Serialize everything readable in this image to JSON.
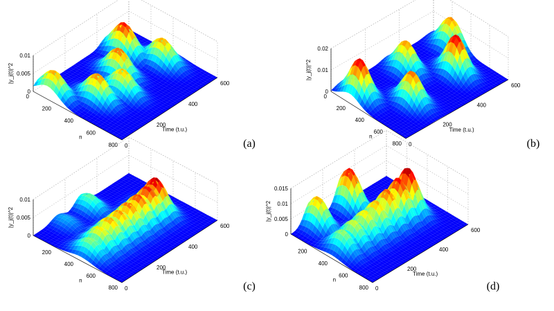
{
  "chart_data": [
    {
      "type": "surface",
      "panel_label": "(a)",
      "zlabel": "|y_j(t)|^2",
      "xlabel": "Time (t.u.)",
      "ylabel": "n",
      "x_ticks": [
        "0",
        "200",
        "400",
        "600"
      ],
      "y_ticks": [
        "0",
        "200",
        "400",
        "600",
        "800"
      ],
      "z_ticks": [
        "0",
        "0.005",
        "0.01"
      ],
      "xlim": [
        0,
        600
      ],
      "ylim": [
        0,
        800
      ],
      "zlim": [
        0,
        0.01
      ],
      "colormap": "jet",
      "peaks": [
        {
          "time": 40,
          "n": 130,
          "value": 0.0068
        },
        {
          "time": 140,
          "n": 380,
          "value": 0.0072
        },
        {
          "time": 250,
          "n": 450,
          "value": 0.0065
        },
        {
          "time": 330,
          "n": 300,
          "value": 0.0075
        },
        {
          "time": 460,
          "n": 160,
          "value": 0.0085
        },
        {
          "time": 520,
          "n": 420,
          "value": 0.0068
        }
      ]
    },
    {
      "type": "surface",
      "panel_label": "(b)",
      "zlabel": "|y_j(t)|^2",
      "xlabel": "Time (t.u.)",
      "ylabel": "n",
      "x_ticks": [
        "0",
        "200",
        "400",
        "600"
      ],
      "y_ticks": [
        "0",
        "200",
        "400",
        "600",
        "800"
      ],
      "z_ticks": [
        "0",
        "0.01",
        "0.02"
      ],
      "xlim": [
        0,
        600
      ],
      "ylim": [
        0,
        800
      ],
      "zlim": [
        0,
        0.02
      ],
      "colormap": "jet",
      "peaks": [
        {
          "time": 60,
          "n": 200,
          "value": 0.018
        },
        {
          "time": 190,
          "n": 520,
          "value": 0.015
        },
        {
          "time": 330,
          "n": 200,
          "value": 0.014
        },
        {
          "time": 470,
          "n": 480,
          "value": 0.018
        },
        {
          "time": 580,
          "n": 220,
          "value": 0.014
        }
      ]
    },
    {
      "type": "surface",
      "panel_label": "(c)",
      "zlabel": "|y_j(t)|^2",
      "xlabel": "Time (t.u.)",
      "ylabel": "n",
      "x_ticks": [
        "0",
        "200",
        "400",
        "600"
      ],
      "y_ticks": [
        "200",
        "400",
        "600",
        "800"
      ],
      "z_ticks": [
        "0",
        "0.005",
        "0.01"
      ],
      "xlim": [
        0,
        600
      ],
      "ylim": [
        0,
        800
      ],
      "zlim": [
        0,
        0.01
      ],
      "colormap": "jet",
      "peaks": [
        {
          "time": 60,
          "n": 430,
          "value": 0.0045
        },
        {
          "time": 120,
          "n": 430,
          "value": 0.006
        },
        {
          "time": 180,
          "n": 430,
          "value": 0.0068
        },
        {
          "time": 240,
          "n": 430,
          "value": 0.007
        },
        {
          "time": 300,
          "n": 430,
          "value": 0.0075
        },
        {
          "time": 360,
          "n": 430,
          "value": 0.008
        },
        {
          "time": 420,
          "n": 430,
          "value": 0.0085
        },
        {
          "time": 470,
          "n": 430,
          "value": 0.0095
        },
        {
          "time": 300,
          "n": 80,
          "value": 0.004
        },
        {
          "time": 150,
          "n": 80,
          "value": 0.002
        }
      ]
    },
    {
      "type": "surface",
      "panel_label": "(d)",
      "zlabel": "|y_j(t)|^2",
      "xlabel": "Time (t.u.)",
      "ylabel": "n",
      "x_ticks": [
        "0",
        "200",
        "400",
        "600"
      ],
      "y_ticks": [
        "200",
        "400",
        "600",
        "800"
      ],
      "z_ticks": [
        "0",
        "0.005",
        "0.01",
        "0.015"
      ],
      "xlim": [
        0,
        600
      ],
      "ylim": [
        0,
        800
      ],
      "zlim": [
        0,
        0.015
      ],
      "colormap": "jet",
      "peaks": [
        {
          "time": 70,
          "n": 400,
          "value": 0.007
        },
        {
          "time": 140,
          "n": 400,
          "value": 0.008
        },
        {
          "time": 210,
          "n": 400,
          "value": 0.009
        },
        {
          "time": 280,
          "n": 400,
          "value": 0.01
        },
        {
          "time": 350,
          "n": 400,
          "value": 0.0115
        },
        {
          "time": 420,
          "n": 400,
          "value": 0.013
        },
        {
          "time": 480,
          "n": 400,
          "value": 0.0145
        },
        {
          "time": 120,
          "n": 80,
          "value": 0.01
        },
        {
          "time": 320,
          "n": 80,
          "value": 0.013
        }
      ]
    }
  ]
}
